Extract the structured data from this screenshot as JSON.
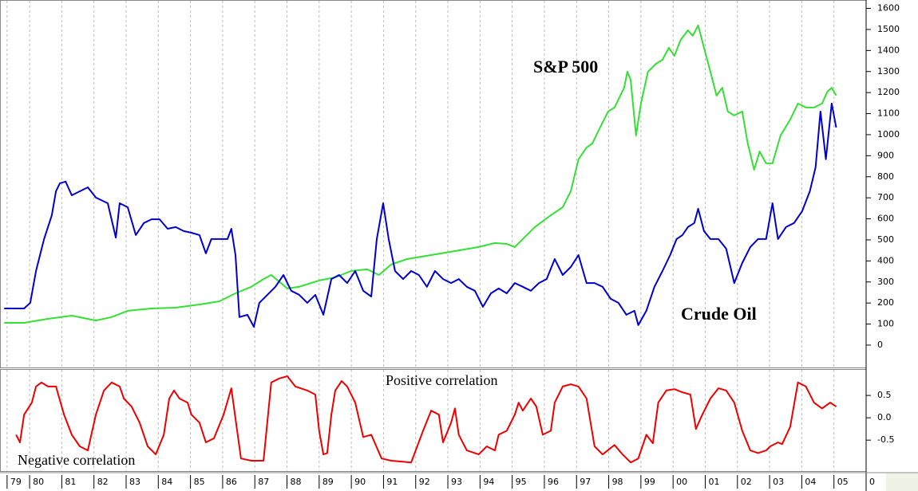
{
  "chart_data": [
    {
      "type": "line",
      "xlim": [
        1979.08,
        2006.0
      ],
      "ylim": [
        -110,
        1640
      ],
      "yticks": [
        0,
        100,
        200,
        300,
        400,
        500,
        600,
        700,
        800,
        900,
        1000,
        1100,
        1200,
        1300,
        1400,
        1500,
        1600
      ],
      "grid": true,
      "series": [
        {
          "name": "S&P 500",
          "color": "#33e033",
          "x": [
            1979.21,
            1979.83,
            1980.57,
            1981.31,
            1982.06,
            1982.55,
            1983.05,
            1983.79,
            1984.54,
            1985.28,
            1985.9,
            1986.4,
            1986.89,
            1987.27,
            1987.51,
            1987.81,
            1988.01,
            1988.38,
            1989.0,
            1989.5,
            1989.99,
            1990.49,
            1990.86,
            1991.24,
            1991.73,
            1992.48,
            1993.22,
            1993.96,
            1994.46,
            1994.83,
            1995.08,
            1995.33,
            1995.7,
            1996.2,
            1996.57,
            1996.82,
            1997.06,
            1997.31,
            1997.49,
            1997.73,
            1997.98,
            1998.18,
            1998.48,
            1998.58,
            1998.68,
            1998.85,
            1999.0,
            1999.22,
            1999.47,
            1999.67,
            1999.87,
            2000.04,
            2000.24,
            2000.46,
            2000.61,
            2000.78,
            2000.96,
            2001.16,
            2001.35,
            2001.53,
            2001.7,
            2001.9,
            2002.15,
            2002.32,
            2002.52,
            2002.69,
            2002.89,
            2003.09,
            2003.34,
            2003.64,
            2003.88,
            2004.13,
            2004.38,
            2004.63,
            2004.8,
            2004.93,
            2005.07
          ],
          "values": [
            106,
            106,
            125,
            140,
            117,
            133,
            163,
            174,
            178,
            193,
            208,
            246,
            277,
            314,
            333,
            295,
            269,
            277,
            307,
            322,
            352,
            360,
            333,
            383,
            409,
            428,
            447,
            466,
            485,
            481,
            466,
            504,
            561,
            617,
            655,
            731,
            883,
            939,
            958,
            1034,
            1110,
            1129,
            1223,
            1299,
            1261,
            996,
            1148,
            1299,
            1337,
            1356,
            1413,
            1375,
            1451,
            1496,
            1470,
            1519,
            1413,
            1299,
            1186,
            1223,
            1110,
            1091,
            1110,
            958,
            833,
            920,
            864,
            864,
            996,
            1072,
            1148,
            1129,
            1129,
            1148,
            1205,
            1223,
            1186
          ]
        },
        {
          "name": "Crude Oil",
          "color": "#0000cc",
          "x": [
            1979.21,
            1979.83,
            1980.02,
            1980.2,
            1980.45,
            1980.69,
            1980.82,
            1980.94,
            1981.12,
            1981.31,
            1981.56,
            1981.81,
            1982.06,
            1982.43,
            1982.68,
            1982.8,
            1983.05,
            1983.3,
            1983.55,
            1983.79,
            1984.04,
            1984.29,
            1984.54,
            1984.79,
            1985.03,
            1985.28,
            1985.48,
            1985.65,
            1985.9,
            1986.15,
            1986.27,
            1986.4,
            1986.52,
            1986.77,
            1986.97,
            1987.14,
            1987.39,
            1987.64,
            1987.89,
            1988.13,
            1988.38,
            1988.63,
            1988.88,
            1989.13,
            1989.38,
            1989.62,
            1989.87,
            1990.12,
            1990.37,
            1990.62,
            1990.79,
            1990.99,
            1991.16,
            1991.36,
            1991.61,
            1991.86,
            1992.1,
            1992.35,
            1992.6,
            1992.85,
            1993.1,
            1993.34,
            1993.59,
            1993.84,
            1994.09,
            1994.34,
            1994.58,
            1994.83,
            1995.08,
            1995.33,
            1995.58,
            1995.83,
            1996.07,
            1996.32,
            1996.57,
            1996.82,
            1997.06,
            1997.31,
            1997.56,
            1997.81,
            1998.06,
            1998.3,
            1998.55,
            1998.8,
            1998.92,
            1999.17,
            1999.42,
            1999.67,
            1999.91,
            2000.11,
            2000.29,
            2000.46,
            2000.66,
            2000.78,
            2000.96,
            2001.16,
            2001.41,
            2001.65,
            2001.9,
            2002.15,
            2002.4,
            2002.64,
            2002.89,
            2003.09,
            2003.26,
            2003.51,
            2003.76,
            2004.01,
            2004.25,
            2004.43,
            2004.58,
            2004.75,
            2004.93,
            2005.07
          ],
          "values": [
            174,
            174,
            201,
            352,
            504,
            617,
            731,
            769,
            777,
            712,
            731,
            750,
            701,
            674,
            511,
            674,
            655,
            523,
            580,
            598,
            598,
            553,
            561,
            542,
            534,
            523,
            436,
            504,
            504,
            504,
            553,
            428,
            133,
            144,
            87,
            201,
            239,
            277,
            333,
            258,
            239,
            201,
            239,
            144,
            314,
            333,
            295,
            352,
            258,
            231,
            504,
            674,
            504,
            352,
            314,
            352,
            333,
            277,
            352,
            314,
            295,
            314,
            277,
            258,
            182,
            246,
            269,
            246,
            295,
            277,
            258,
            295,
            314,
            409,
            333,
            371,
            428,
            295,
            295,
            277,
            220,
            201,
            144,
            163,
            95,
            163,
            277,
            352,
            428,
            504,
            523,
            561,
            580,
            648,
            542,
            504,
            504,
            458,
            295,
            390,
            466,
            504,
            504,
            674,
            504,
            561,
            580,
            636,
            731,
            845,
            1110,
            883,
            1148,
            1034
          ]
        }
      ]
    },
    {
      "type": "line",
      "xlim": [
        1979.08,
        2006.0
      ],
      "ylim": [
        -1.21,
        1.09
      ],
      "yticks": [
        -0.5,
        {
          "value": 0,
          "label": "0.0"
        },
        0.5
      ],
      "grid": true,
      "xticks": [
        {
          "value": 1979.3,
          "label": "79"
        },
        {
          "value": 1980,
          "label": "80"
        },
        {
          "value": 1981,
          "label": "81"
        },
        {
          "value": 1982,
          "label": "82"
        },
        {
          "value": 1983,
          "label": "83"
        },
        {
          "value": 1984,
          "label": "84"
        },
        {
          "value": 1985,
          "label": "85"
        },
        {
          "value": 1986,
          "label": "86"
        },
        {
          "value": 1987,
          "label": "87"
        },
        {
          "value": 1988,
          "label": "88"
        },
        {
          "value": 1989,
          "label": "89"
        },
        {
          "value": 1990,
          "label": "90"
        },
        {
          "value": 1991,
          "label": "91"
        },
        {
          "value": 1992,
          "label": "92"
        },
        {
          "value": 1993,
          "label": "93"
        },
        {
          "value": 1994,
          "label": "94"
        },
        {
          "value": 1995,
          "label": "95"
        },
        {
          "value": 1996,
          "label": "96"
        },
        {
          "value": 1997,
          "label": "97"
        },
        {
          "value": 1998,
          "label": "98"
        },
        {
          "value": 1999,
          "label": "99"
        },
        {
          "value": 2000,
          "label": "00"
        },
        {
          "value": 2001,
          "label": "01"
        },
        {
          "value": 2002,
          "label": "02"
        },
        {
          "value": 2003,
          "label": "03"
        },
        {
          "value": 2004,
          "label": "04"
        },
        {
          "value": 2005,
          "label": "05"
        },
        {
          "value": 2006,
          "label": "0"
        }
      ],
      "annotations": [
        "Positive correlation",
        "Negative correlation"
      ],
      "series": [
        {
          "color": "#ee0000",
          "x": [
            1979.58,
            1979.7,
            1979.83,
            1980.07,
            1980.2,
            1980.37,
            1980.57,
            1980.82,
            1981.07,
            1981.31,
            1981.56,
            1981.81,
            1982.06,
            1982.31,
            1982.55,
            1982.8,
            1982.93,
            1983.17,
            1983.42,
            1983.67,
            1983.92,
            1984.17,
            1984.34,
            1984.49,
            1984.66,
            1984.91,
            1985.03,
            1985.28,
            1985.48,
            1985.73,
            1986.03,
            1986.27,
            1986.4,
            1986.57,
            1986.89,
            1987.27,
            1987.51,
            1987.76,
            1988.01,
            1988.26,
            1988.63,
            1988.88,
            1989.0,
            1989.13,
            1989.25,
            1989.38,
            1989.5,
            1989.7,
            1989.87,
            1990.12,
            1990.37,
            1990.62,
            1990.94,
            1991.24,
            1991.86,
            1992.23,
            1992.48,
            1992.72,
            1992.85,
            1993.1,
            1993.22,
            1993.34,
            1993.59,
            1993.96,
            1994.21,
            1994.46,
            1994.58,
            1994.83,
            1995.08,
            1995.2,
            1995.33,
            1995.58,
            1995.75,
            1995.95,
            1996.2,
            1996.32,
            1996.57,
            1996.82,
            1997.06,
            1997.31,
            1997.56,
            1997.81,
            1998.18,
            1998.43,
            1998.68,
            1998.92,
            1999.17,
            1999.37,
            1999.54,
            1999.79,
            2000.04,
            2000.29,
            2000.54,
            2000.71,
            2000.91,
            2001.16,
            2001.41,
            2001.65,
            2001.9,
            2002.15,
            2002.4,
            2002.64,
            2002.89,
            2003.02,
            2003.26,
            2003.39,
            2003.64,
            2003.88,
            2004.13,
            2004.38,
            2004.63,
            2004.88,
            2005.07
          ],
          "values": [
            -0.38,
            -0.55,
            0.07,
            0.34,
            0.7,
            0.79,
            0.7,
            0.7,
            0.07,
            -0.38,
            -0.64,
            -0.73,
            0.07,
            0.61,
            0.79,
            0.7,
            0.43,
            0.25,
            -0.11,
            -0.64,
            -0.82,
            -0.38,
            0.43,
            0.61,
            0.43,
            0.34,
            0.07,
            -0.11,
            -0.55,
            -0.46,
            0.07,
            0.66,
            -0.02,
            -0.91,
            -0.96,
            -0.96,
            0.79,
            0.88,
            0.93,
            0.7,
            0.61,
            0.52,
            -0.29,
            -0.82,
            -0.79,
            0.07,
            0.61,
            0.82,
            0.7,
            0.34,
            -0.43,
            -0.38,
            -0.91,
            -0.96,
            -1.0,
            -0.29,
            0.16,
            0.07,
            -0.55,
            -0.11,
            0.21,
            -0.38,
            -0.73,
            -0.82,
            -0.64,
            -0.73,
            -0.38,
            -0.29,
            0.07,
            0.34,
            0.16,
            0.43,
            0.25,
            -0.38,
            -0.29,
            0.34,
            0.7,
            0.75,
            0.7,
            0.43,
            -0.64,
            -0.82,
            -0.61,
            -0.82,
            -1.0,
            -0.91,
            -0.38,
            -0.57,
            0.34,
            0.61,
            0.64,
            0.57,
            0.52,
            -0.25,
            0.07,
            0.43,
            0.66,
            0.61,
            0.34,
            -0.29,
            -0.73,
            -0.79,
            -0.73,
            -0.64,
            -0.55,
            -0.59,
            -0.2,
            0.79,
            0.7,
            0.34,
            0.21,
            0.34,
            0.25
          ]
        }
      ]
    }
  ]
}
